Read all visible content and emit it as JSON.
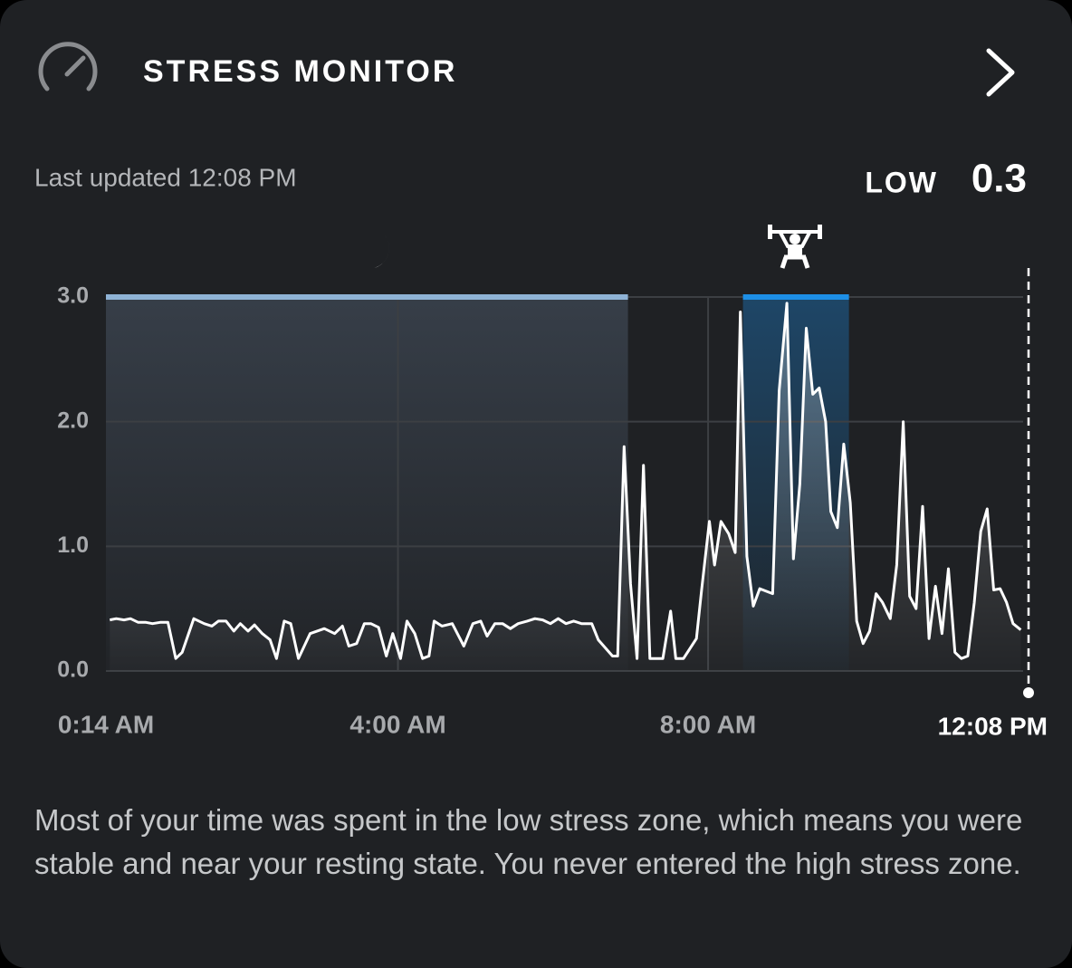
{
  "header": {
    "title": "STRESS MONITOR"
  },
  "last_updated": "Last updated 12:08 PM",
  "current": {
    "level": "LOW",
    "value": 0.3
  },
  "description": "Most of your time was spent in the low stress zone, which means you were stable and near your resting state. You never entered the high stress zone.",
  "chart_data": {
    "type": "line",
    "color": "#ffffff",
    "grid": true,
    "xlim": [
      14,
      728
    ],
    "xticks": [
      {
        "value": 14,
        "label": "0:14 AM"
      },
      {
        "value": 240,
        "label": "4:00 AM"
      },
      {
        "value": 480,
        "label": "8:00 AM"
      },
      {
        "value": 728,
        "label": "12:08 PM"
      }
    ],
    "ylim": [
      0,
      3
    ],
    "yticks": [
      {
        "value": 0,
        "label": "0.0"
      },
      {
        "value": 1,
        "label": "1.0"
      },
      {
        "value": 2,
        "label": "2.0"
      },
      {
        "value": 3,
        "label": "3.0"
      }
    ],
    "zones": [
      {
        "start": 14,
        "end": 418,
        "color": "#8fb3d6"
      },
      {
        "start": 507,
        "end": 589,
        "color": "#1d8fe6"
      }
    ],
    "x": [
      17,
      22,
      28,
      33,
      39,
      45,
      50,
      56,
      62,
      68,
      73,
      82,
      90,
      96,
      101,
      107,
      113,
      118,
      124,
      129,
      135,
      141,
      146,
      152,
      157,
      163,
      172,
      183,
      191,
      197,
      202,
      208,
      214,
      219,
      225,
      231,
      236,
      242,
      247,
      253,
      259,
      264,
      268,
      274,
      282,
      291,
      298,
      304,
      309,
      315,
      321,
      327,
      333,
      340,
      346,
      352,
      358,
      364,
      370,
      376,
      382,
      390,
      395,
      406,
      410,
      415,
      420,
      425,
      430,
      435,
      445,
      451,
      455,
      461,
      471,
      475,
      481,
      485,
      490,
      496,
      501,
      505,
      510,
      515,
      520,
      530,
      535,
      541,
      546,
      551,
      556,
      561,
      566,
      571,
      575,
      580,
      585,
      590,
      595,
      600,
      605,
      610,
      615,
      621,
      626,
      631,
      636,
      641,
      646,
      651,
      656,
      661,
      666,
      671,
      676,
      681,
      686,
      691,
      696,
      701,
      706,
      711,
      716,
      722
    ],
    "values": [
      0.41,
      0.42,
      0.41,
      0.42,
      0.39,
      0.39,
      0.38,
      0.39,
      0.39,
      0.1,
      0.15,
      0.42,
      0.38,
      0.36,
      0.4,
      0.4,
      0.32,
      0.38,
      0.32,
      0.37,
      0.3,
      0.25,
      0.1,
      0.4,
      0.38,
      0.1,
      0.3,
      0.34,
      0.3,
      0.36,
      0.2,
      0.22,
      0.38,
      0.38,
      0.35,
      0.12,
      0.3,
      0.1,
      0.4,
      0.3,
      0.1,
      0.12,
      0.4,
      0.36,
      0.38,
      0.2,
      0.38,
      0.4,
      0.28,
      0.38,
      0.38,
      0.34,
      0.38,
      0.4,
      0.42,
      0.41,
      0.38,
      0.42,
      0.38,
      0.4,
      0.38,
      0.38,
      0.25,
      0.12,
      0.12,
      1.8,
      0.7,
      0.1,
      1.65,
      0.1,
      0.1,
      0.48,
      0.1,
      0.1,
      0.26,
      0.65,
      1.2,
      0.85,
      1.2,
      1.1,
      0.95,
      2.88,
      0.92,
      0.52,
      0.66,
      0.62,
      2.25,
      2.95,
      0.9,
      1.5,
      2.75,
      2.22,
      2.27,
      2.0,
      1.28,
      1.15,
      1.82,
      1.35,
      0.4,
      0.22,
      0.32,
      0.62,
      0.55,
      0.42,
      0.85,
      2.0,
      0.6,
      0.5,
      1.32,
      0.26,
      0.68,
      0.3,
      0.82,
      0.15,
      0.1,
      0.12,
      0.55,
      1.12,
      1.3,
      0.65,
      0.66,
      0.55,
      0.38,
      0.33
    ]
  }
}
